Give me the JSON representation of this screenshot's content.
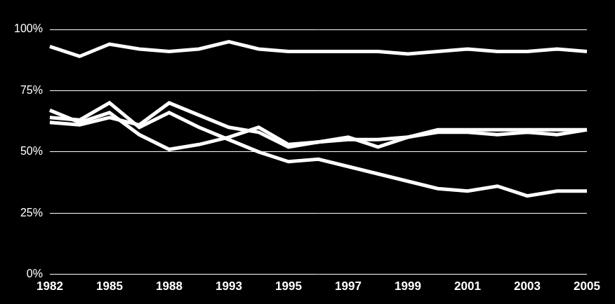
{
  "chart_data": {
    "type": "line",
    "categories": [
      "1982",
      null,
      "1985",
      null,
      "1988",
      null,
      "1993",
      null,
      "1995",
      null,
      "1997",
      null,
      "1999",
      null,
      "2001",
      null,
      "2003",
      null,
      "2005"
    ],
    "series": [
      {
        "color": "#ffffff",
        "values": [
          93,
          89,
          94,
          92,
          91,
          92,
          95,
          92,
          91,
          91,
          91,
          91,
          90,
          91,
          92,
          91,
          91,
          92,
          91
        ]
      },
      {
        "color": "#ffffff",
        "values": [
          67,
          62,
          66,
          57,
          51,
          53,
          56,
          60,
          53,
          54,
          55,
          55,
          56,
          58,
          58,
          57,
          58,
          57,
          59
        ]
      },
      {
        "color": "#ffffff",
        "values": [
          62,
          61,
          64,
          61,
          70,
          65,
          60,
          58,
          52,
          54,
          56,
          52,
          56,
          59,
          59,
          59,
          59,
          59,
          59
        ]
      },
      {
        "color": "#ffffff",
        "values": [
          64,
          63,
          70,
          60,
          66,
          60,
          55,
          50,
          46,
          47,
          44,
          41,
          38,
          35,
          34,
          36,
          32,
          34,
          34
        ]
      }
    ],
    "ylim": [
      0,
      100
    ],
    "yticks": [
      {
        "value": 0,
        "label": "0%"
      },
      {
        "value": 25,
        "label": "25%"
      },
      {
        "value": 50,
        "label": "50%"
      },
      {
        "value": 75,
        "label": "75%"
      },
      {
        "value": 100,
        "label": "100%"
      }
    ],
    "grid": true
  }
}
